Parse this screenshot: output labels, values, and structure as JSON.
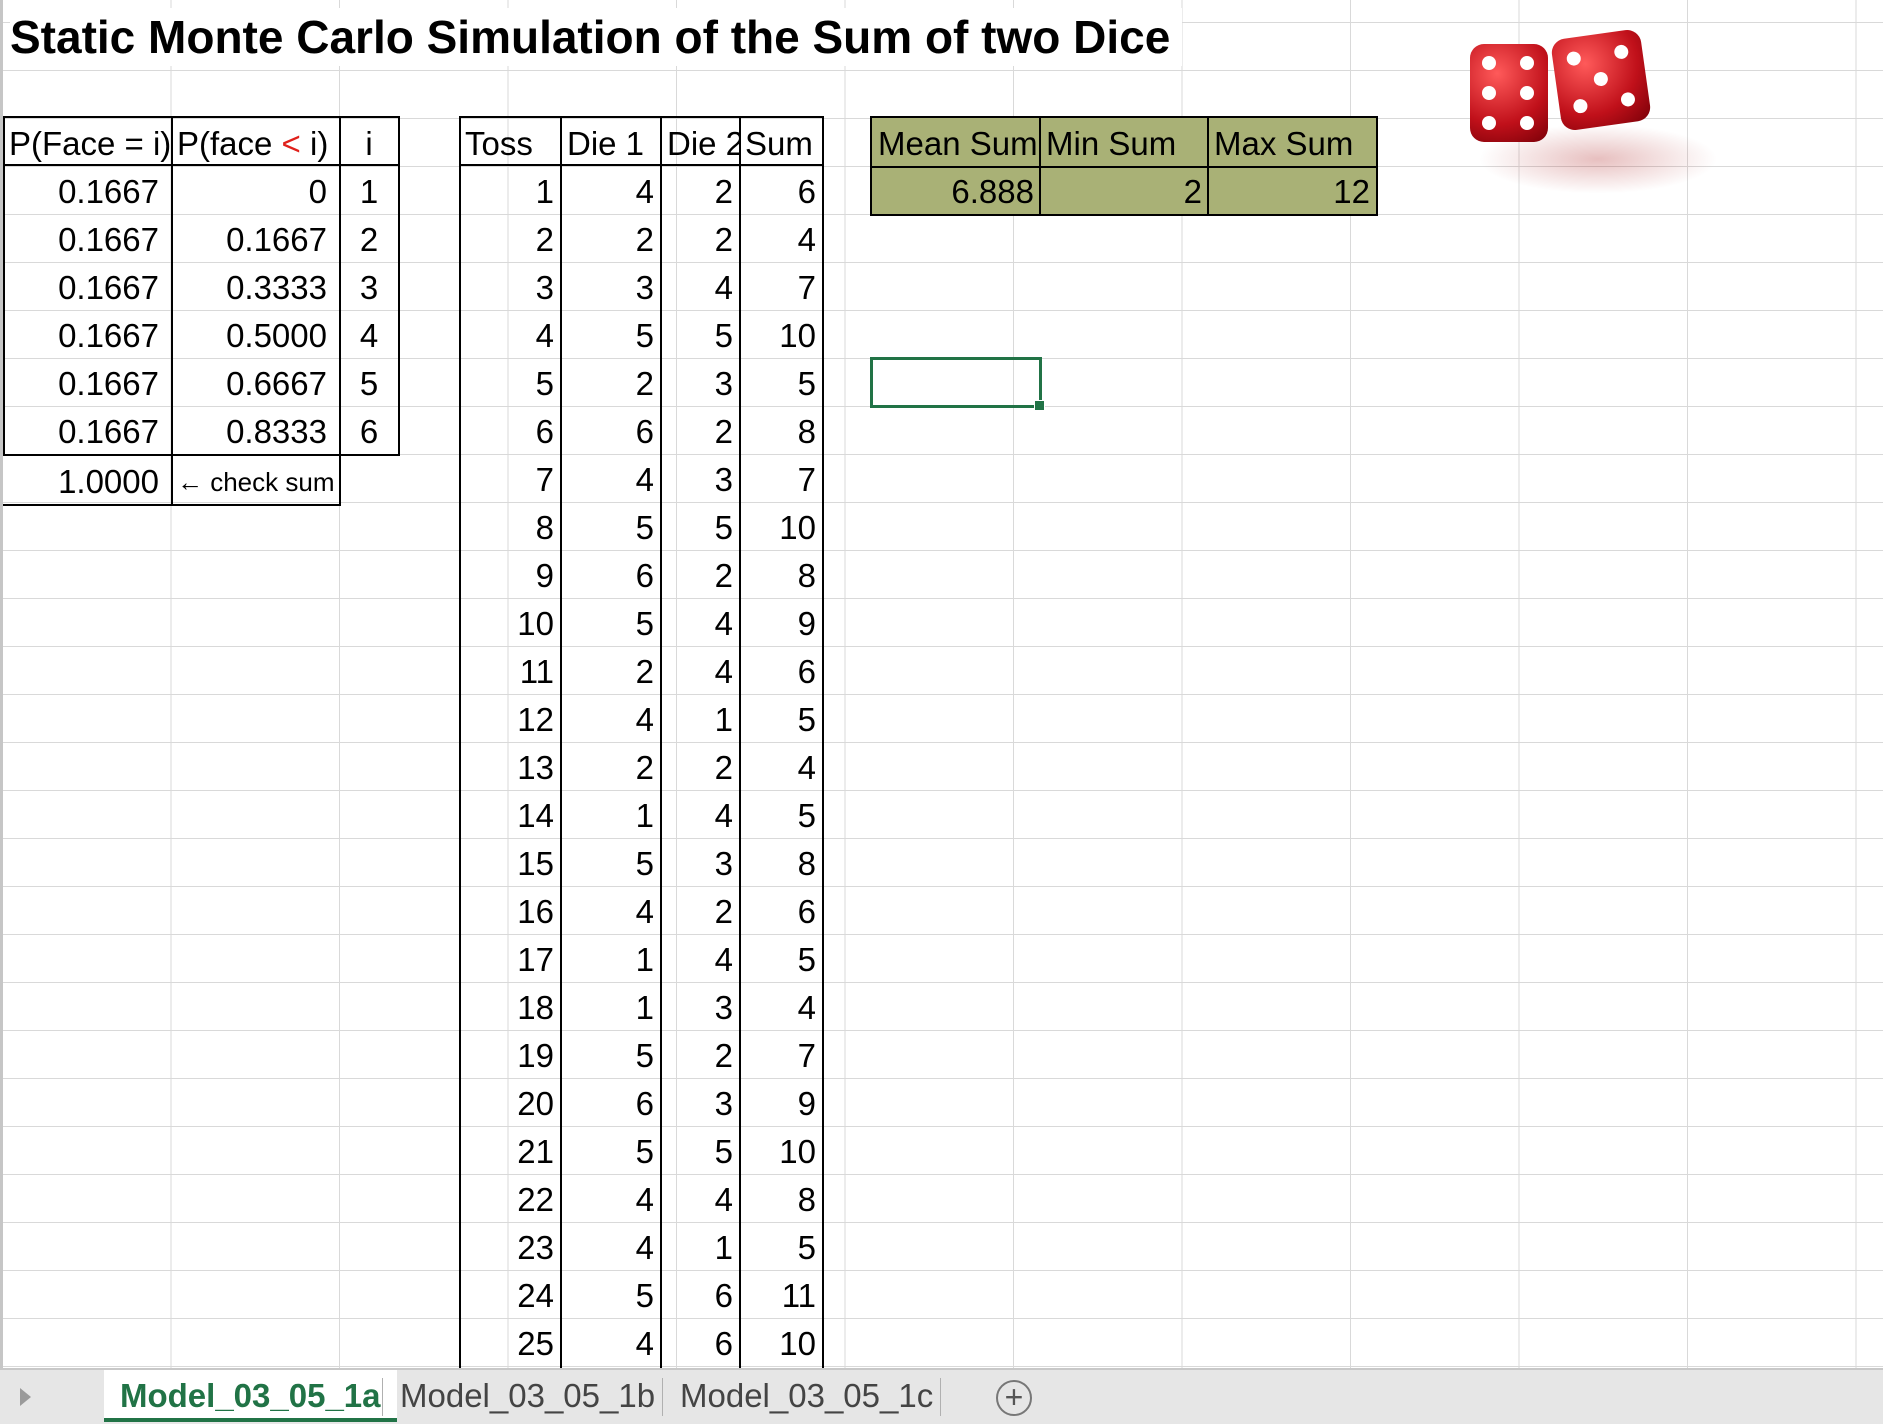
{
  "title": "Static Monte Carlo Simulation of the Sum of two Dice",
  "prob_table": {
    "headers": [
      "P(Face = i)",
      "P(face ",
      "<",
      " i)",
      "i"
    ],
    "rows": [
      [
        "0.1667",
        "0",
        "1"
      ],
      [
        "0.1667",
        "0.1667",
        "2"
      ],
      [
        "0.1667",
        "0.3333",
        "3"
      ],
      [
        "0.1667",
        "0.5000",
        "4"
      ],
      [
        "0.1667",
        "0.6667",
        "5"
      ],
      [
        "0.1667",
        "0.8333",
        "6"
      ]
    ],
    "check_value": "1.0000",
    "check_label": "← check sum"
  },
  "toss_table": {
    "headers": [
      "Toss",
      "Die 1",
      "Die 2",
      "Sum"
    ],
    "rows": [
      [
        "1",
        "4",
        "2",
        "6"
      ],
      [
        "2",
        "2",
        "2",
        "4"
      ],
      [
        "3",
        "3",
        "4",
        "7"
      ],
      [
        "4",
        "5",
        "5",
        "10"
      ],
      [
        "5",
        "2",
        "3",
        "5"
      ],
      [
        "6",
        "6",
        "2",
        "8"
      ],
      [
        "7",
        "4",
        "3",
        "7"
      ],
      [
        "8",
        "5",
        "5",
        "10"
      ],
      [
        "9",
        "6",
        "2",
        "8"
      ],
      [
        "10",
        "5",
        "4",
        "9"
      ],
      [
        "11",
        "2",
        "4",
        "6"
      ],
      [
        "12",
        "4",
        "1",
        "5"
      ],
      [
        "13",
        "2",
        "2",
        "4"
      ],
      [
        "14",
        "1",
        "4",
        "5"
      ],
      [
        "15",
        "5",
        "3",
        "8"
      ],
      [
        "16",
        "4",
        "2",
        "6"
      ],
      [
        "17",
        "1",
        "4",
        "5"
      ],
      [
        "18",
        "1",
        "3",
        "4"
      ],
      [
        "19",
        "5",
        "2",
        "7"
      ],
      [
        "20",
        "6",
        "3",
        "9"
      ],
      [
        "21",
        "5",
        "5",
        "10"
      ],
      [
        "22",
        "4",
        "4",
        "8"
      ],
      [
        "23",
        "4",
        "1",
        "5"
      ],
      [
        "24",
        "5",
        "6",
        "11"
      ],
      [
        "25",
        "4",
        "6",
        "10"
      ]
    ]
  },
  "summary": {
    "headers": [
      "Mean Sum",
      "Min Sum",
      "Max Sum"
    ],
    "values": [
      "6.888",
      "2",
      "12"
    ]
  },
  "image": {
    "icon": "dice-image"
  },
  "sheet_tabs": [
    "Model_03_05_1a",
    "Model_03_05_1b",
    "Model_03_05_1c"
  ],
  "colors": {
    "header_fill": "#a9b176",
    "active_tab": "#217346",
    "lt_sign": "#e0201b"
  }
}
